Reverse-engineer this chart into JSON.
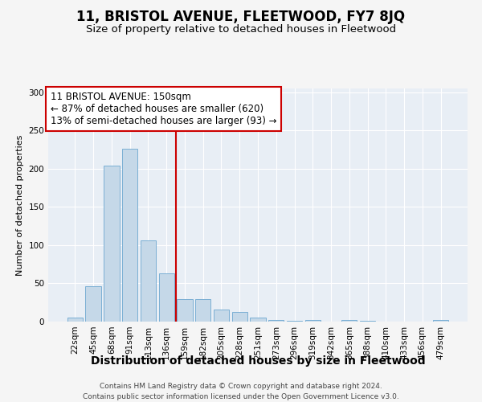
{
  "title": "11, BRISTOL AVENUE, FLEETWOOD, FY7 8JQ",
  "subtitle": "Size of property relative to detached houses in Fleetwood",
  "xlabel": "Distribution of detached houses by size in Fleetwood",
  "ylabel": "Number of detached properties",
  "footer_line1": "Contains HM Land Registry data © Crown copyright and database right 2024.",
  "footer_line2": "Contains public sector information licensed under the Open Government Licence v3.0.",
  "bin_labels": [
    "22sqm",
    "45sqm",
    "68sqm",
    "91sqm",
    "113sqm",
    "136sqm",
    "159sqm",
    "182sqm",
    "205sqm",
    "228sqm",
    "251sqm",
    "273sqm",
    "296sqm",
    "319sqm",
    "342sqm",
    "365sqm",
    "388sqm",
    "410sqm",
    "433sqm",
    "456sqm",
    "479sqm"
  ],
  "bar_values": [
    5,
    46,
    204,
    226,
    106,
    63,
    29,
    29,
    16,
    13,
    5,
    2,
    1,
    2,
    0,
    2,
    1,
    0,
    0,
    0,
    2
  ],
  "bar_color": "#c5d8e8",
  "bar_edge_color": "#7bafd4",
  "vline_x": 5.5,
  "vline_color": "#cc0000",
  "annotation_line1": "11 BRISTOL AVENUE: 150sqm",
  "annotation_line2": "← 87% of detached houses are smaller (620)",
  "annotation_line3": "13% of semi-detached houses are larger (93) →",
  "ann_box_facecolor": "#ffffff",
  "ann_box_edgecolor": "#cc0000",
  "ylim": [
    0,
    305
  ],
  "yticks": [
    0,
    50,
    100,
    150,
    200,
    250,
    300
  ],
  "background_color": "#e8eef5",
  "grid_color": "#ffffff",
  "fig_facecolor": "#f5f5f5",
  "title_fontsize": 12,
  "subtitle_fontsize": 9.5,
  "ylabel_fontsize": 8,
  "xlabel_fontsize": 10,
  "tick_fontsize": 7.5,
  "ann_fontsize": 8.5,
  "footer_fontsize": 6.5
}
